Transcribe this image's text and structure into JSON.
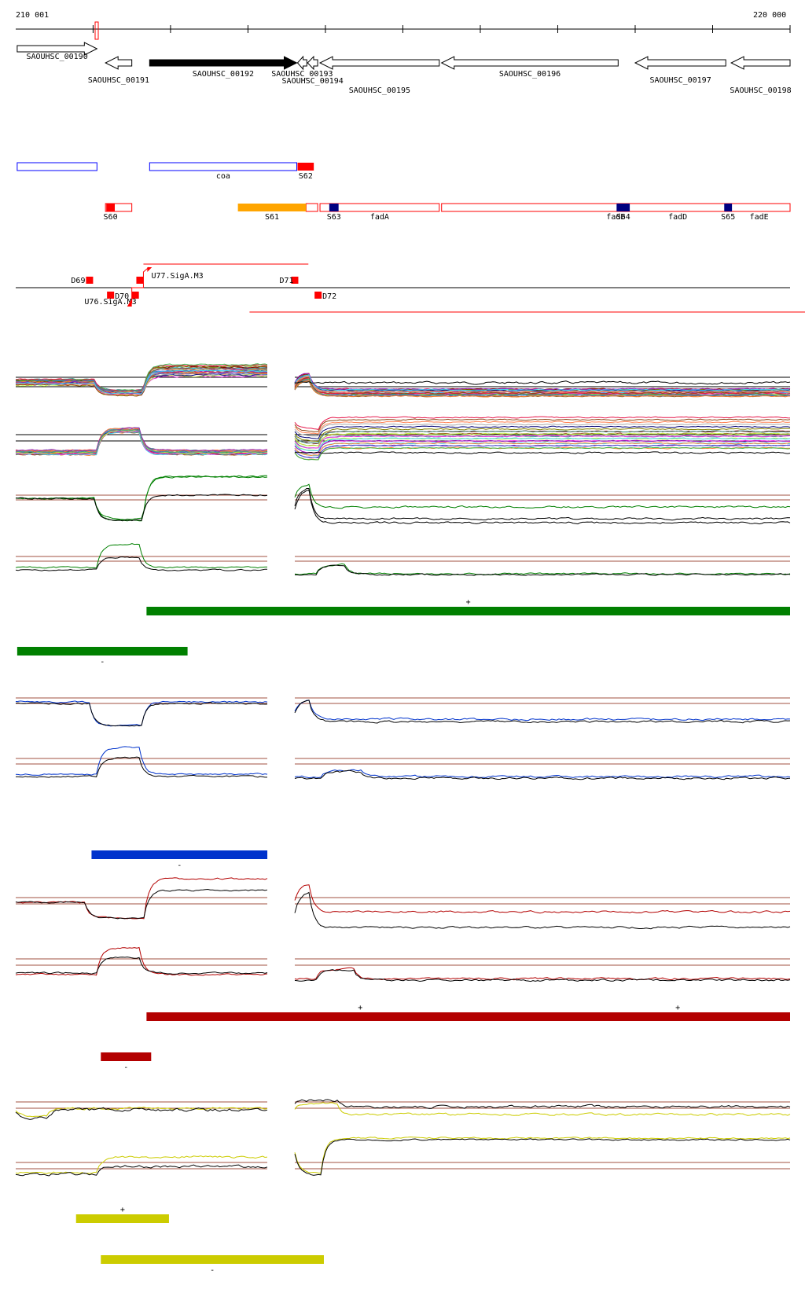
{
  "axis": {
    "start_label": "210 001",
    "end_label": "220 000",
    "start": 210001,
    "end": 220000
  },
  "colors": {
    "red": "#ff0000",
    "blue": "#0000ff",
    "orange": "#ffa500",
    "navy": "#000080",
    "green": "#008000",
    "dark_blue": "#0033cc",
    "dark_red": "#b30000",
    "yellow": "#cccc00",
    "brown": "#a05040"
  },
  "genes": [
    {
      "label": "SAOUHSC_00190",
      "start": 210020,
      "end": 211050,
      "strand": "+",
      "filled": false
    },
    {
      "label": "SAOUHSC_00191",
      "start": 211160,
      "end": 211500,
      "strand": "-",
      "filled": false
    },
    {
      "label": "SAOUHSC_00192",
      "start": 211730,
      "end": 213630,
      "strand": "+",
      "filled": true
    },
    {
      "label": "SAOUHSC_00193",
      "start": 213640,
      "end": 213760,
      "strand": "-",
      "filled": false
    },
    {
      "label": "SAOUHSC_00194",
      "start": 213770,
      "end": 213900,
      "strand": "-",
      "filled": false
    },
    {
      "label": "SAOUHSC_00195",
      "start": 213930,
      "end": 215470,
      "strand": "-",
      "filled": false
    },
    {
      "label": "SAOUHSC_00196",
      "start": 215500,
      "end": 217780,
      "strand": "-",
      "filled": false
    },
    {
      "label": "SAOUHSC_00197",
      "start": 218000,
      "end": 219170,
      "strand": "-",
      "filled": false
    },
    {
      "label": "SAOUHSC_00198",
      "start": 219240,
      "end": 220000,
      "strand": "-",
      "filled": false
    }
  ],
  "operons": [
    {
      "start": 210020,
      "end": 211050,
      "color": "blue",
      "label": ""
    },
    {
      "start": 211730,
      "end": 213630,
      "color": "blue",
      "label": "coa"
    },
    {
      "start": 211160,
      "end": 211500,
      "color": "red",
      "label": ""
    },
    {
      "start": 213750,
      "end": 213900,
      "color": "red",
      "label": ""
    },
    {
      "start": 213930,
      "end": 215470,
      "color": "red",
      "label": "fadA"
    },
    {
      "start": 215500,
      "end": 220000,
      "color": "red",
      "label": "fadB"
    }
  ],
  "operon_extra_labels": [
    {
      "label": "fadD",
      "pos": 218550
    },
    {
      "label": "fadE",
      "pos": 219600
    }
  ],
  "segments": [
    {
      "label": "S60",
      "start": 211170,
      "end": 211280,
      "color": "red"
    },
    {
      "label": "S61",
      "start": 212870,
      "end": 213750,
      "color": "orange"
    },
    {
      "label": "S62",
      "start": 213640,
      "end": 213850,
      "color": "red"
    },
    {
      "label": "S63",
      "start": 214050,
      "end": 214170,
      "color": "navy"
    },
    {
      "label": "S64",
      "start": 217760,
      "end": 217930,
      "color": "navy"
    },
    {
      "label": "S65",
      "start": 219150,
      "end": 219250,
      "color": "navy"
    }
  ],
  "promoters": [
    {
      "label": "D69",
      "pos": 211000,
      "strand": "+"
    },
    {
      "label": "U76.SigA.M3",
      "pos": 211500,
      "strand": "-"
    },
    {
      "label": "D70",
      "pos": 211180,
      "strand": "-"
    },
    {
      "label": "U77.SigA.M3",
      "pos": 211650,
      "strand": "+"
    },
    {
      "label": "D71",
      "pos": 213650,
      "strand": "+"
    },
    {
      "label": "D72",
      "pos": 213860,
      "strand": "-"
    }
  ],
  "transcripts": [
    {
      "start": 211650,
      "end": 213780,
      "strand": "+"
    },
    {
      "start": 213020,
      "end": 220200,
      "strand": "-"
    }
  ],
  "conditions": [
    {
      "color": "green",
      "plus_bar": {
        "start": 211690,
        "end": 220000,
        "mark": "+"
      },
      "minus_bar": {
        "start": 210020,
        "end": 212220,
        "mark": "-"
      }
    },
    {
      "color": "dark_blue",
      "plus_bar": null,
      "minus_bar": {
        "start": 210980,
        "end": 213250,
        "mark": "-"
      }
    },
    {
      "color": "dark_red",
      "plus_bar": {
        "start": 211690,
        "end": 220000,
        "mark": "+",
        "mark2": "+"
      },
      "minus_bar": {
        "start": 211100,
        "end": 211750,
        "mark": "-"
      }
    },
    {
      "color": "yellow",
      "plus_bar": {
        "start": 210780,
        "end": 211980,
        "mark": "+"
      },
      "minus_bar": {
        "start": 211100,
        "end": 213980,
        "mark": "-"
      }
    }
  ]
}
